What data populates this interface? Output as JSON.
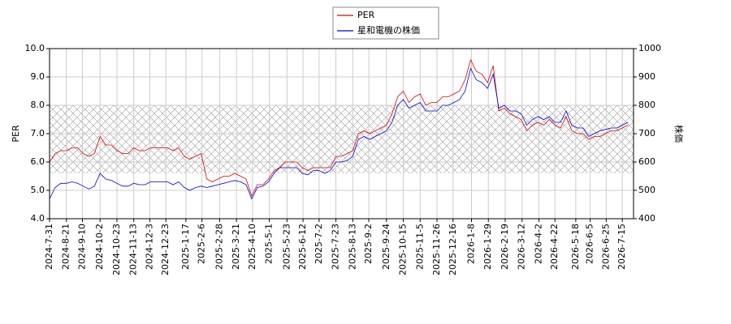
{
  "chart_data": {
    "type": "line",
    "x": [
      "2024-7-31",
      "2024-8-7",
      "2024-8-14",
      "2024-8-21",
      "2024-8-28",
      "2024-9-4",
      "2024-9-11",
      "2024-9-18",
      "2024-9-25",
      "2024-10-2",
      "2024-10-9",
      "2024-10-16",
      "2024-10-23",
      "2024-10-30",
      "2024-11-6",
      "2024-11-13",
      "2024-11-20",
      "2024-11-27",
      "2024-12-4",
      "2024-12-11",
      "2024-12-18",
      "2024-12-25",
      "2025-1-1",
      "2025-1-8",
      "2025-1-15",
      "2025-1-22",
      "2025-1-29",
      "2025-2-5",
      "2025-2-12",
      "2025-2-19",
      "2025-2-26",
      "2025-3-5",
      "2025-3-12",
      "2025-3-19",
      "2025-3-26",
      "2025-4-2",
      "2025-4-9",
      "2025-4-16",
      "2025-4-23",
      "2025-4-30",
      "2025-5-7",
      "2025-5-14",
      "2025-5-21",
      "2025-5-28",
      "2025-6-4",
      "2025-6-11",
      "2025-6-18",
      "2025-6-25",
      "2025-7-2",
      "2025-7-9",
      "2025-7-16",
      "2025-7-23",
      "2025-7-30",
      "2025-8-6",
      "2025-8-13",
      "2025-8-20",
      "2025-8-27",
      "2025-9-3",
      "2025-9-10",
      "2025-9-17",
      "2025-9-24",
      "2025-10-1",
      "2025-10-8",
      "2025-10-15",
      "2025-10-22",
      "2025-10-29",
      "2025-11-5",
      "2025-11-12",
      "2025-11-19",
      "2025-11-26",
      "2025-12-3",
      "2025-12-10",
      "2025-12-17",
      "2025-12-24",
      "2025-12-31",
      "2026-1-7",
      "2026-1-14",
      "2026-1-21",
      "2026-1-28",
      "2026-2-4",
      "2026-2-11",
      "2026-2-18",
      "2026-2-25",
      "2026-3-4",
      "2026-3-11",
      "2026-3-18",
      "2026-3-25",
      "2026-4-1",
      "2026-4-8",
      "2026-4-15",
      "2026-4-22",
      "2026-4-29",
      "2026-5-6",
      "2026-5-13",
      "2026-5-20",
      "2026-5-27",
      "2026-6-3",
      "2026-6-10",
      "2026-6-17",
      "2026-6-24",
      "2026-7-1",
      "2026-7-8",
      "2026-7-15",
      "2026-7-22"
    ],
    "series": [
      {
        "name": "PER",
        "color": "#dd0000",
        "values": [
          6.0,
          6.3,
          6.4,
          6.4,
          6.5,
          6.5,
          6.3,
          6.2,
          6.3,
          6.9,
          6.6,
          6.6,
          6.4,
          6.3,
          6.3,
          6.5,
          6.4,
          6.4,
          6.5,
          6.5,
          6.5,
          6.5,
          6.4,
          6.5,
          6.2,
          6.1,
          6.2,
          6.3,
          5.4,
          5.3,
          5.4,
          5.5,
          5.5,
          5.6,
          5.5,
          5.4,
          4.8,
          5.2,
          5.2,
          5.4,
          5.7,
          5.8,
          6.0,
          6.0,
          6.0,
          5.8,
          5.7,
          5.8,
          5.8,
          5.8,
          5.8,
          6.2,
          6.2,
          6.3,
          6.4,
          7.0,
          7.1,
          7.0,
          7.1,
          7.2,
          7.3,
          7.7,
          8.3,
          8.5,
          8.1,
          8.3,
          8.4,
          8.0,
          8.1,
          8.1,
          8.3,
          8.3,
          8.4,
          8.5,
          8.9,
          9.6,
          9.2,
          9.1,
          8.8,
          9.4,
          7.8,
          7.9,
          7.7,
          7.6,
          7.5,
          7.1,
          7.3,
          7.4,
          7.3,
          7.5,
          7.3,
          7.2,
          7.6,
          7.1,
          7.0,
          7.0,
          6.8,
          6.9,
          6.9,
          7.0,
          7.1,
          7.1,
          7.2,
          7.3
        ]
      },
      {
        "name": "星和電機の株価",
        "color": "#0000dd",
        "axis": "y2",
        "values": [
          470,
          510,
          525,
          525,
          530,
          525,
          515,
          505,
          515,
          560,
          540,
          535,
          525,
          515,
          515,
          525,
          520,
          520,
          530,
          530,
          530,
          530,
          520,
          530,
          510,
          500,
          510,
          515,
          510,
          515,
          520,
          525,
          530,
          535,
          530,
          520,
          470,
          510,
          515,
          530,
          560,
          580,
          580,
          580,
          580,
          560,
          555,
          570,
          570,
          560,
          570,
          600,
          600,
          605,
          620,
          680,
          690,
          680,
          690,
          700,
          710,
          740,
          800,
          820,
          790,
          800,
          810,
          780,
          780,
          780,
          800,
          800,
          810,
          820,
          850,
          930,
          890,
          880,
          860,
          910,
          790,
          800,
          780,
          780,
          770,
          730,
          750,
          760,
          750,
          760,
          740,
          740,
          780,
          730,
          720,
          720,
          690,
          700,
          710,
          715,
          720,
          720,
          730,
          740
        ]
      }
    ],
    "xlim": [
      "2024-7-31",
      "2026-7-29"
    ],
    "xticks": [
      "2024-7-31",
      "2024-8-21",
      "2024-9-10",
      "2024-10-2",
      "2024-10-23",
      "2024-11-13",
      "2024-12-3",
      "2024-12-23",
      "2025-1-17",
      "2025-2-6",
      "2025-2-28",
      "2025-3-21",
      "2025-4-10",
      "2025-5-1",
      "2025-5-23",
      "2025-6-12",
      "2025-7-2",
      "2025-7-23",
      "2025-8-13",
      "2025-9-2",
      "2025-9-24",
      "2025-10-15",
      "2025-11-5",
      "2025-11-26",
      "2025-12-16",
      "2026-1-8",
      "2026-1-29",
      "2026-2-19",
      "2026-3-12",
      "2026-4-2",
      "2026-4-22",
      "2026-5-18",
      "2026-6-5",
      "2026-6-25",
      "2026-7-15"
    ],
    "ylim": [
      4,
      10
    ],
    "yticks": [
      {
        "value": 4,
        "label": "4.0"
      },
      {
        "value": 5,
        "label": "5.0"
      },
      {
        "value": 6,
        "label": "6.0"
      },
      {
        "value": 7,
        "label": "7.0"
      },
      {
        "value": 8,
        "label": "8.0"
      },
      {
        "value": 9,
        "label": "9.0"
      },
      {
        "value": 10,
        "label": "10.0"
      }
    ],
    "y2lim": [
      400,
      1000
    ],
    "y2ticks": [
      400,
      500,
      600,
      700,
      800,
      900,
      1000
    ],
    "ylabel": "PER",
    "y2label": "株価",
    "shaded_range": [
      5.6,
      8.0
    ],
    "grid": true,
    "legend": "top"
  }
}
